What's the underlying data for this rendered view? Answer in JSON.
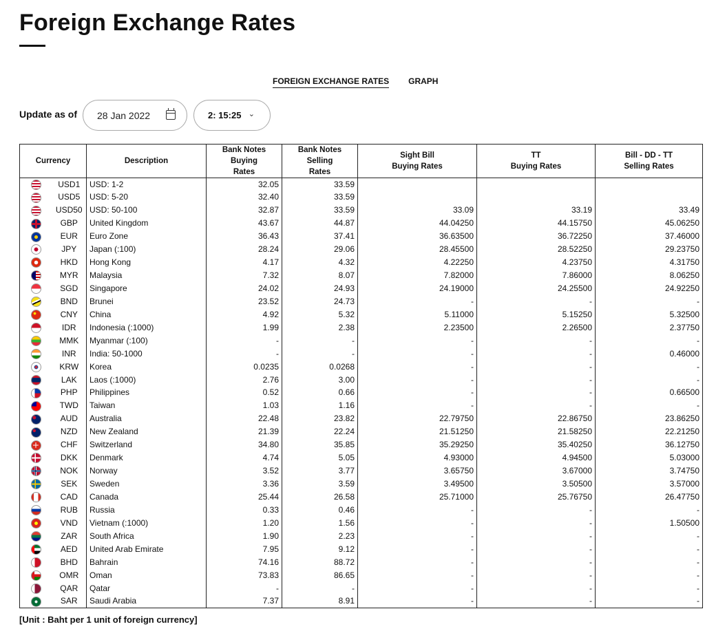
{
  "page": {
    "title": "Foreign Exchange Rates",
    "tabs": [
      "FOREIGN EXCHANGE RATES",
      "GRAPH"
    ],
    "update_label": "Update as of",
    "date": "28 Jan 2022",
    "time": "2: 15:25",
    "unit_note": "[Unit : Baht per 1 unit of foreign currency]"
  },
  "table": {
    "headers": {
      "currency": "Currency",
      "description": "Description",
      "bn_buy_1": "Bank Notes",
      "bn_buy_2": "Buying",
      "bn_buy_3": "Rates",
      "bn_sell_1": "Bank Notes",
      "bn_sell_2": "Selling",
      "bn_sell_3": "Rates",
      "sight_1": "Sight Bill",
      "sight_2": "Buying Rates",
      "tt_1": "TT",
      "tt_2": "Buying Rates",
      "bill_1": "Bill - DD - TT",
      "bill_2": "Selling Rates"
    },
    "rows": [
      {
        "flag": "us",
        "code": "USD1",
        "desc": "USD: 1-2",
        "bn_buy": "32.05",
        "bn_sell": "33.59",
        "sight": "",
        "tt": "",
        "bill": ""
      },
      {
        "flag": "us",
        "code": "USD5",
        "desc": "USD: 5-20",
        "bn_buy": "32.40",
        "bn_sell": "33.59",
        "sight": "",
        "tt": "",
        "bill": ""
      },
      {
        "flag": "us",
        "code": "USD50",
        "desc": "USD: 50-100",
        "bn_buy": "32.87",
        "bn_sell": "33.59",
        "sight": "33.09",
        "tt": "33.19",
        "bill": "33.49"
      },
      {
        "flag": "gb",
        "code": "GBP",
        "desc": "United Kingdom",
        "bn_buy": "43.67",
        "bn_sell": "44.87",
        "sight": "44.04250",
        "tt": "44.15750",
        "bill": "45.06250"
      },
      {
        "flag": "eu",
        "code": "EUR",
        "desc": "Euro Zone",
        "bn_buy": "36.43",
        "bn_sell": "37.41",
        "sight": "36.63500",
        "tt": "36.72250",
        "bill": "37.46000"
      },
      {
        "flag": "jp",
        "code": "JPY",
        "desc": "Japan (:100)",
        "bn_buy": "28.24",
        "bn_sell": "29.06",
        "sight": "28.45500",
        "tt": "28.52250",
        "bill": "29.23750"
      },
      {
        "flag": "hk",
        "code": "HKD",
        "desc": "Hong Kong",
        "bn_buy": "4.17",
        "bn_sell": "4.32",
        "sight": "4.22250",
        "tt": "4.23750",
        "bill": "4.31750"
      },
      {
        "flag": "my",
        "code": "MYR",
        "desc": "Malaysia",
        "bn_buy": "7.32",
        "bn_sell": "8.07",
        "sight": "7.82000",
        "tt": "7.86000",
        "bill": "8.06250"
      },
      {
        "flag": "sg",
        "code": "SGD",
        "desc": "Singapore",
        "bn_buy": "24.02",
        "bn_sell": "24.93",
        "sight": "24.19000",
        "tt": "24.25500",
        "bill": "24.92250"
      },
      {
        "flag": "bn",
        "code": "BND",
        "desc": "Brunei",
        "bn_buy": "23.52",
        "bn_sell": "24.73",
        "sight": "-",
        "tt": "-",
        "bill": "-"
      },
      {
        "flag": "cn",
        "code": "CNY",
        "desc": "China",
        "bn_buy": "4.92",
        "bn_sell": "5.32",
        "sight": "5.11000",
        "tt": "5.15250",
        "bill": "5.32500"
      },
      {
        "flag": "id",
        "code": "IDR",
        "desc": "Indonesia (:1000)",
        "bn_buy": "1.99",
        "bn_sell": "2.38",
        "sight": "2.23500",
        "tt": "2.26500",
        "bill": "2.37750"
      },
      {
        "flag": "mm",
        "code": "MMK",
        "desc": "Myanmar (:100)",
        "bn_buy": "-",
        "bn_sell": "-",
        "sight": "-",
        "tt": "-",
        "bill": "-"
      },
      {
        "flag": "in",
        "code": "INR",
        "desc": "India: 50-1000",
        "bn_buy": "-",
        "bn_sell": "-",
        "sight": "-",
        "tt": "-",
        "bill": "0.46000"
      },
      {
        "flag": "kr",
        "code": "KRW",
        "desc": "Korea",
        "bn_buy": "0.0235",
        "bn_sell": "0.0268",
        "sight": "-",
        "tt": "-",
        "bill": "-"
      },
      {
        "flag": "la",
        "code": "LAK",
        "desc": "Laos (:1000)",
        "bn_buy": "2.76",
        "bn_sell": "3.00",
        "sight": "-",
        "tt": "-",
        "bill": "-"
      },
      {
        "flag": "ph",
        "code": "PHP",
        "desc": "Philippines",
        "bn_buy": "0.52",
        "bn_sell": "0.66",
        "sight": "-",
        "tt": "-",
        "bill": "0.66500"
      },
      {
        "flag": "tw",
        "code": "TWD",
        "desc": "Taiwan",
        "bn_buy": "1.03",
        "bn_sell": "1.16",
        "sight": "-",
        "tt": "-",
        "bill": "-"
      },
      {
        "flag": "au",
        "code": "AUD",
        "desc": "Australia",
        "bn_buy": "22.48",
        "bn_sell": "23.82",
        "sight": "22.79750",
        "tt": "22.86750",
        "bill": "23.86250"
      },
      {
        "flag": "nz",
        "code": "NZD",
        "desc": "New Zealand",
        "bn_buy": "21.39",
        "bn_sell": "22.24",
        "sight": "21.51250",
        "tt": "21.58250",
        "bill": "22.21250"
      },
      {
        "flag": "ch",
        "code": "CHF",
        "desc": "Switzerland",
        "bn_buy": "34.80",
        "bn_sell": "35.85",
        "sight": "35.29250",
        "tt": "35.40250",
        "bill": "36.12750"
      },
      {
        "flag": "dk",
        "code": "DKK",
        "desc": "Denmark",
        "bn_buy": "4.74",
        "bn_sell": "5.05",
        "sight": "4.93000",
        "tt": "4.94500",
        "bill": "5.03000"
      },
      {
        "flag": "no",
        "code": "NOK",
        "desc": "Norway",
        "bn_buy": "3.52",
        "bn_sell": "3.77",
        "sight": "3.65750",
        "tt": "3.67000",
        "bill": "3.74750"
      },
      {
        "flag": "se",
        "code": "SEK",
        "desc": "Sweden",
        "bn_buy": "3.36",
        "bn_sell": "3.59",
        "sight": "3.49500",
        "tt": "3.50500",
        "bill": "3.57000"
      },
      {
        "flag": "ca",
        "code": "CAD",
        "desc": "Canada",
        "bn_buy": "25.44",
        "bn_sell": "26.58",
        "sight": "25.71000",
        "tt": "25.76750",
        "bill": "26.47750"
      },
      {
        "flag": "ru",
        "code": "RUB",
        "desc": "Russia",
        "bn_buy": "0.33",
        "bn_sell": "0.46",
        "sight": "-",
        "tt": "-",
        "bill": "-"
      },
      {
        "flag": "vn",
        "code": "VND",
        "desc": "Vietnam (:1000)",
        "bn_buy": "1.20",
        "bn_sell": "1.56",
        "sight": "-",
        "tt": "-",
        "bill": "1.50500"
      },
      {
        "flag": "za",
        "code": "ZAR",
        "desc": "South Africa",
        "bn_buy": "1.90",
        "bn_sell": "2.23",
        "sight": "-",
        "tt": "-",
        "bill": "-"
      },
      {
        "flag": "ae",
        "code": "AED",
        "desc": "United Arab Emirate",
        "bn_buy": "7.95",
        "bn_sell": "9.12",
        "sight": "-",
        "tt": "-",
        "bill": "-"
      },
      {
        "flag": "bh",
        "code": "BHD",
        "desc": "Bahrain",
        "bn_buy": "74.16",
        "bn_sell": "88.72",
        "sight": "-",
        "tt": "-",
        "bill": "-"
      },
      {
        "flag": "om",
        "code": "OMR",
        "desc": "Oman",
        "bn_buy": "73.83",
        "bn_sell": "86.65",
        "sight": "-",
        "tt": "-",
        "bill": "-"
      },
      {
        "flag": "qa",
        "code": "QAR",
        "desc": "Qatar",
        "bn_buy": "-",
        "bn_sell": "-",
        "sight": "-",
        "tt": "-",
        "bill": "-"
      },
      {
        "flag": "sa",
        "code": "SAR",
        "desc": "Saudi Arabia",
        "bn_buy": "7.37",
        "bn_sell": "8.91",
        "sight": "-",
        "tt": "-",
        "bill": "-"
      }
    ]
  },
  "flag_styles": {
    "us": "repeating-linear-gradient(180deg,#c8102e 0 2px,#fff 2px 4px)",
    "gb": "linear-gradient(90deg,transparent 40%,#c8102e 40% 60%,transparent 60%),linear-gradient(180deg,transparent 40%,#c8102e 40% 60%,transparent 60%),#012169",
    "eu": "radial-gradient(circle,#ffcc00 0 25%,#003399 30%)",
    "jp": "radial-gradient(circle,#bc002d 0 30%,#fff 33%)",
    "hk": "radial-gradient(circle,#fff 0 28%,#de2910 32%)",
    "my": "linear-gradient(90deg,#010066 45%,transparent 45%),repeating-linear-gradient(180deg,#cc0001 0 2px,#fff 2px 4px)",
    "sg": "linear-gradient(180deg,#ef3340 50%,#fff 50%)",
    "bn": "linear-gradient(155deg,#f7e017 40%,#fff 40% 52%,#000 52% 62%,#f7e017 62%)",
    "cn": "radial-gradient(circle at 35% 35%,#ffde00 0 14%,#de2910 18%)",
    "id": "linear-gradient(180deg,#ce1126 50%,#fff 50%)",
    "mm": "linear-gradient(180deg,#fecb00 33%,#34b233 33% 66%,#ea2839 66%)",
    "in": "linear-gradient(180deg,#ff9933 33%,#fff 33% 66%,#138808 66%)",
    "kr": "radial-gradient(circle,#cd2e3a 0 20%,#0047a0 22% 30%,#fff 32%)",
    "la": "linear-gradient(180deg,#ce1126 25%,#002868 25% 75%,#ce1126 75%)",
    "ph": "linear-gradient(90deg,#fff 35%,transparent 35%),linear-gradient(180deg,#0038a8 50%,#ce1126 50%)",
    "tw": "linear-gradient(180deg,#000095 50%,transparent 50%) left top/55% 100% no-repeat,#fe0000",
    "au": "radial-gradient(circle at 30% 30%,#c8102e 0 18%,transparent 20%),#012169",
    "nz": "radial-gradient(circle at 30% 30%,#c8102e 0 16%,transparent 18%),#012169",
    "ch": "linear-gradient(90deg,transparent 42%,#fff 42% 58%,transparent 58%) center/60% 60% no-repeat,linear-gradient(180deg,transparent 42%,#fff 42% 58%,transparent 58%) center/60% 60% no-repeat,#da291c",
    "dk": "linear-gradient(90deg,transparent 35%,#fff 35% 48%,transparent 48%),linear-gradient(180deg,transparent 42%,#fff 42% 58%,transparent 58%),#c60c30",
    "no": "linear-gradient(90deg,transparent 38%,#002868 38% 48%,transparent 48%),linear-gradient(180deg,transparent 44%,#002868 44% 56%,transparent 56%),linear-gradient(90deg,transparent 33%,#fff 33% 53%,transparent 53%),linear-gradient(180deg,transparent 38%,#fff 38% 62%,transparent 62%),#ba0c2f",
    "se": "linear-gradient(90deg,transparent 35%,#fecc00 35% 48%,transparent 48%),linear-gradient(180deg,transparent 42%,#fecc00 42% 58%,transparent 58%),#006aa7",
    "ca": "linear-gradient(90deg,#d52b1e 25%,#fff 25% 75%,#d52b1e 75%)",
    "ru": "linear-gradient(180deg,#fff 33%,#0039a6 33% 66%,#d52b1e 66%)",
    "vn": "radial-gradient(circle,#ffff00 0 24%,#da251d 28%)",
    "za": "linear-gradient(180deg,#e03c31 33%,#007749 33% 66%,#001489 66%)",
    "ae": "linear-gradient(90deg,#ff0000 30%,transparent 30%),linear-gradient(180deg,#00732f 33%,#fff 33% 66%,#000 66%)",
    "bh": "linear-gradient(90deg,#fff 35%,#ce1126 35%)",
    "om": "linear-gradient(90deg,#db161b 30%,transparent 30%),linear-gradient(180deg,#fff 33%,#db161b 33% 66%,#008000 66%)",
    "qa": "linear-gradient(90deg,#fff 35%,#8a1538 35%)",
    "sa": "radial-gradient(circle,#fff 0 20%,#006c35 24%)"
  }
}
